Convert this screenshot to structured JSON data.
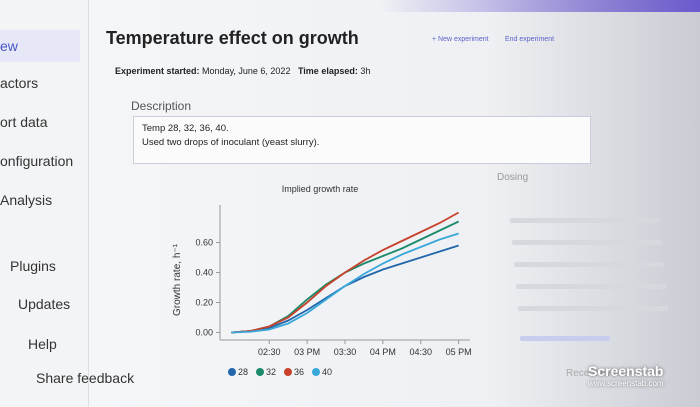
{
  "sidebar": {
    "items": [
      "ew",
      "actors",
      "ort data",
      "onfiguration",
      "Analysis",
      "Plugins",
      "Updates",
      "Help",
      "Share feedback"
    ]
  },
  "header": {
    "title": "Temperature effect on growth",
    "actions": [
      "+ New experiment",
      "End experiment"
    ]
  },
  "meta": {
    "started_label": "Experiment started:",
    "started_value": "Monday, June 6, 2022",
    "elapsed_label": "Time elapsed:",
    "elapsed_value": "3h"
  },
  "description": {
    "label": "Description",
    "lines": [
      "Temp 28, 32, 36, 40.",
      "Used two drops of inoculant (yeast slurry)."
    ]
  },
  "side_panel": {
    "title": "Dosing",
    "footer": "Recent events"
  },
  "watermark": {
    "name": "Screenstab",
    "url": "www.screenstab.com"
  },
  "chart_data": {
    "type": "line",
    "title": "Implied growth rate",
    "y_label": "Growth rate, h⁻¹",
    "x": [
      14.0,
      14.25,
      14.5,
      14.75,
      15.0,
      15.25,
      15.5,
      15.75,
      16.0,
      16.25,
      16.5,
      16.75,
      17.0
    ],
    "xlim": [
      13.85,
      17.15
    ],
    "xticks": [
      {
        "value": 14.5,
        "label": "02:30"
      },
      {
        "value": 15.0,
        "label": "03 PM"
      },
      {
        "value": 15.5,
        "label": "03:30"
      },
      {
        "value": 16.0,
        "label": "04 PM"
      },
      {
        "value": 16.5,
        "label": "04:30"
      },
      {
        "value": 17.0,
        "label": "05 PM"
      }
    ],
    "ylim": [
      -0.05,
      0.85
    ],
    "yticks": [
      {
        "value": 0,
        "label": "0.00"
      },
      {
        "value": 0.2,
        "label": "0.20"
      },
      {
        "value": 0.4,
        "label": "0.40"
      },
      {
        "value": 0.6,
        "label": "0.60"
      }
    ],
    "series": [
      {
        "name": "28",
        "color": "#2166ac",
        "values": [
          0,
          0.01,
          0.03,
          0.08,
          0.15,
          0.23,
          0.31,
          0.37,
          0.42,
          0.46,
          0.5,
          0.54,
          0.58
        ]
      },
      {
        "name": "32",
        "color": "#1b8a6b",
        "values": [
          0,
          0.01,
          0.04,
          0.11,
          0.22,
          0.32,
          0.4,
          0.46,
          0.51,
          0.56,
          0.62,
          0.68,
          0.74
        ]
      },
      {
        "name": "36",
        "color": "#c8412a",
        "values": [
          0,
          0.01,
          0.04,
          0.1,
          0.2,
          0.31,
          0.4,
          0.48,
          0.55,
          0.61,
          0.67,
          0.73,
          0.8
        ]
      },
      {
        "name": "40",
        "color": "#3aa7d9",
        "values": [
          0,
          0.005,
          0.02,
          0.06,
          0.13,
          0.22,
          0.31,
          0.39,
          0.46,
          0.52,
          0.57,
          0.62,
          0.66
        ]
      }
    ]
  }
}
